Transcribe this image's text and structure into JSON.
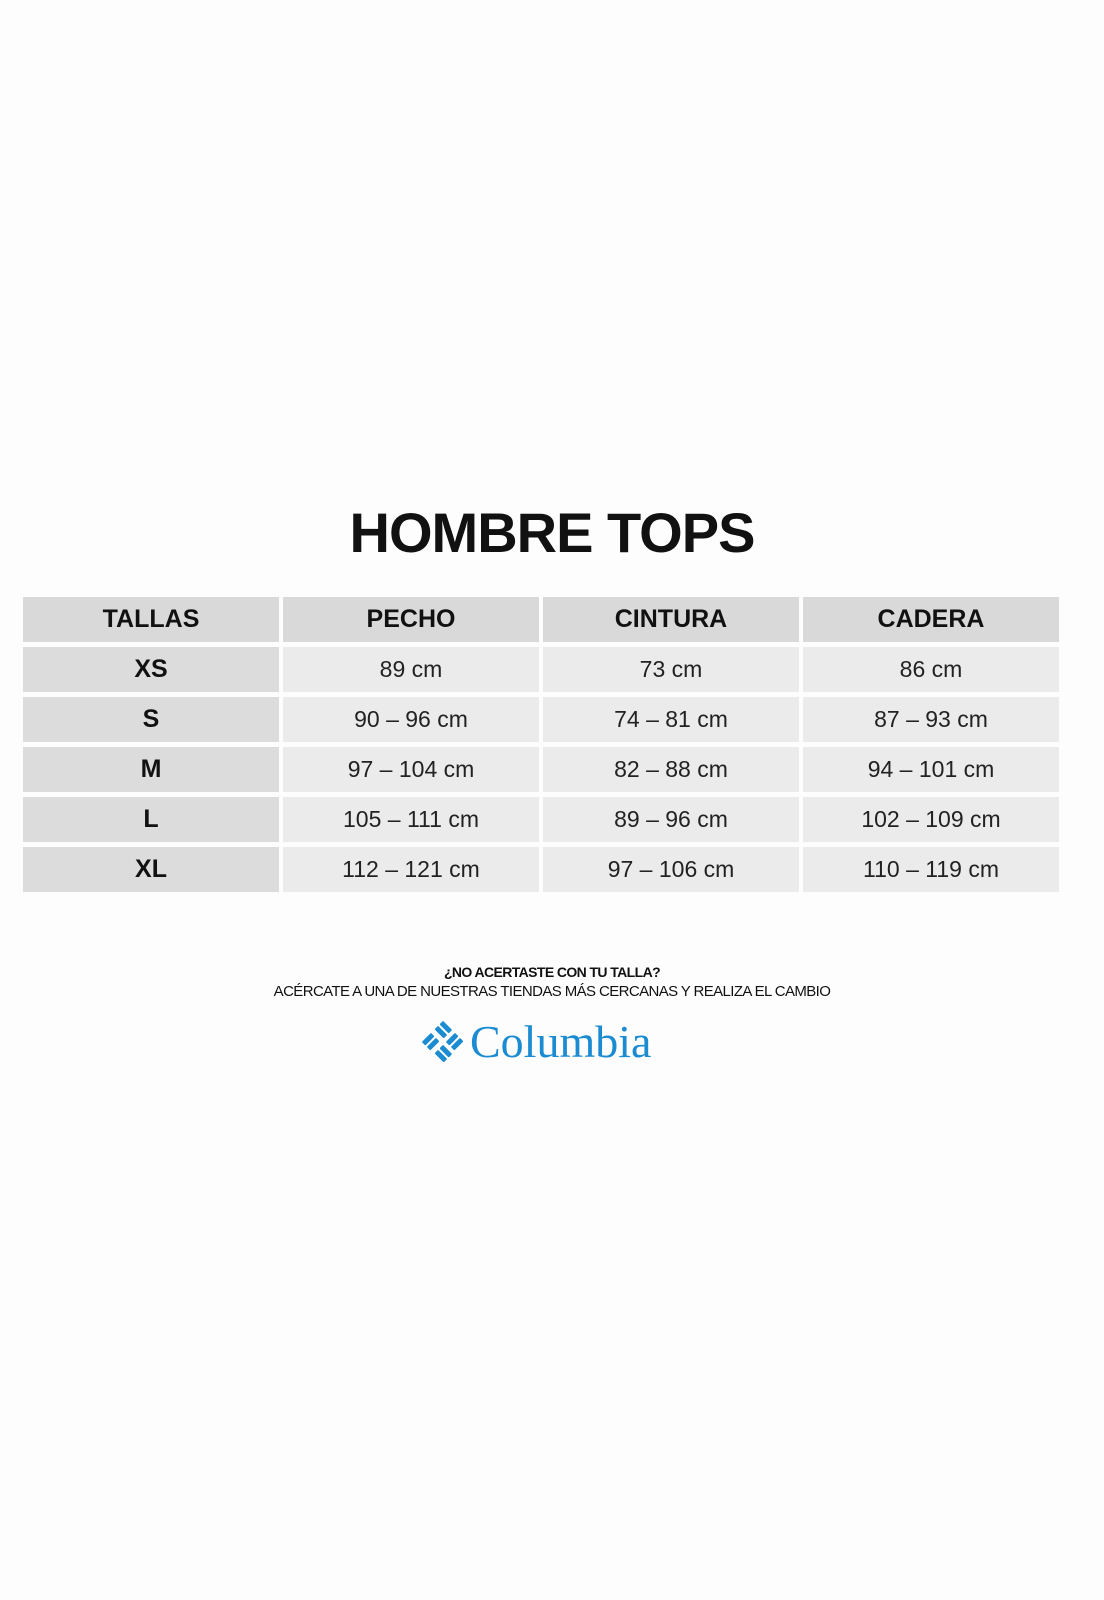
{
  "title": "HOMBRE TOPS",
  "table": {
    "headers": [
      "TALLAS",
      "PECHO",
      "CINTURA",
      "CADERA"
    ],
    "rows": [
      [
        "XS",
        "89 cm",
        "73 cm",
        "86 cm"
      ],
      [
        "S",
        "90 – 96 cm",
        "74 – 81 cm",
        "87 – 93 cm"
      ],
      [
        "M",
        "97 – 104 cm",
        "82 – 88 cm",
        "94 – 101 cm"
      ],
      [
        "L",
        "105 – 111 cm",
        "89 – 96 cm",
        "102 – 109 cm"
      ],
      [
        "XL",
        "112 – 121 cm",
        "97 – 106 cm",
        "110 – 119 cm"
      ]
    ]
  },
  "note": {
    "line1": "¿NO ACERTASTE CON TU TALLA?",
    "line2": "ACÉRCATE A UNA DE NUESTRAS TIENDAS MÁS CERCANAS Y REALIZA EL CAMBIO"
  },
  "logo": {
    "text": "Columbia",
    "icon": "columbia-diamond-logo-icon",
    "color": "#1b8bd2"
  }
}
